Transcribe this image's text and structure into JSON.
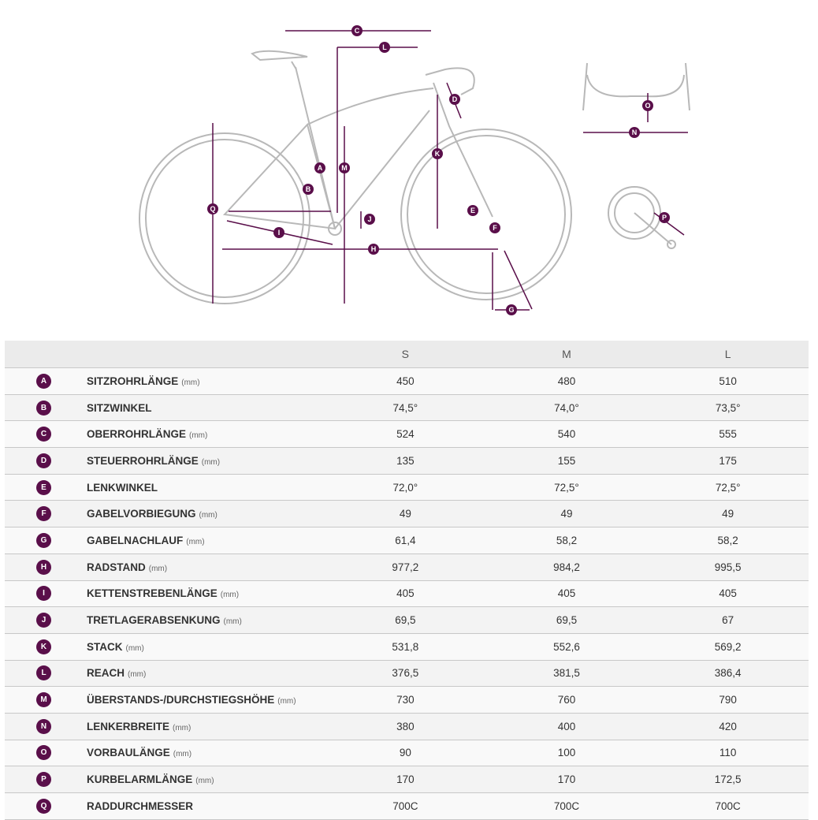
{
  "diagram": {
    "labels": [
      "A",
      "B",
      "C",
      "D",
      "E",
      "F",
      "G",
      "H",
      "I",
      "J",
      "K",
      "L",
      "M",
      "N",
      "O",
      "P",
      "Q"
    ],
    "accent": "#5a0f4a",
    "line": "#b8b8b8"
  },
  "table": {
    "sizes": [
      "S",
      "M",
      "L"
    ],
    "rows": [
      {
        "letter": "A",
        "name": "SITZROHRLÄNGE",
        "unit": "(mm)",
        "values": [
          "450",
          "480",
          "510"
        ]
      },
      {
        "letter": "B",
        "name": "SITZWINKEL",
        "unit": "",
        "values": [
          "74,5°",
          "74,0°",
          "73,5°"
        ]
      },
      {
        "letter": "C",
        "name": "OBERROHRLÄNGE",
        "unit": "(mm)",
        "values": [
          "524",
          "540",
          "555"
        ]
      },
      {
        "letter": "D",
        "name": "STEUERROHRLÄNGE",
        "unit": "(mm)",
        "values": [
          "135",
          "155",
          "175"
        ]
      },
      {
        "letter": "E",
        "name": "LENKWINKEL",
        "unit": "",
        "values": [
          "72,0°",
          "72,5°",
          "72,5°"
        ]
      },
      {
        "letter": "F",
        "name": "GABELVORBIEGUNG",
        "unit": "(mm)",
        "values": [
          "49",
          "49",
          "49"
        ]
      },
      {
        "letter": "G",
        "name": "GABELNACHLAUF",
        "unit": "(mm)",
        "values": [
          "61,4",
          "58,2",
          "58,2"
        ]
      },
      {
        "letter": "H",
        "name": "RADSTAND",
        "unit": "(mm)",
        "values": [
          "977,2",
          "984,2",
          "995,5"
        ]
      },
      {
        "letter": "I",
        "name": "KETTENSTREBENLÄNGE",
        "unit": "(mm)",
        "values": [
          "405",
          "405",
          "405"
        ]
      },
      {
        "letter": "J",
        "name": "TRETLAGERABSENKUNG",
        "unit": "(mm)",
        "values": [
          "69,5",
          "69,5",
          "67"
        ]
      },
      {
        "letter": "K",
        "name": "STACK",
        "unit": "(mm)",
        "values": [
          "531,8",
          "552,6",
          "569,2"
        ]
      },
      {
        "letter": "L",
        "name": "REACH",
        "unit": "(mm)",
        "values": [
          "376,5",
          "381,5",
          "386,4"
        ]
      },
      {
        "letter": "M",
        "name": "ÜBERSTANDS-/DURCHSTIEGSHÖHE",
        "unit": "(mm)",
        "values": [
          "730",
          "760",
          "790"
        ]
      },
      {
        "letter": "N",
        "name": "LENKERBREITE",
        "unit": "(mm)",
        "values": [
          "380",
          "400",
          "420"
        ]
      },
      {
        "letter": "O",
        "name": "VORBAULÄNGE",
        "unit": "(mm)",
        "values": [
          "90",
          "100",
          "110"
        ]
      },
      {
        "letter": "P",
        "name": "KURBELARMLÄNGE",
        "unit": "(mm)",
        "values": [
          "170",
          "170",
          "172,5"
        ]
      },
      {
        "letter": "Q",
        "name": "RADDURCHMESSER",
        "unit": "",
        "values": [
          "700C",
          "700C",
          "700C"
        ]
      }
    ]
  }
}
